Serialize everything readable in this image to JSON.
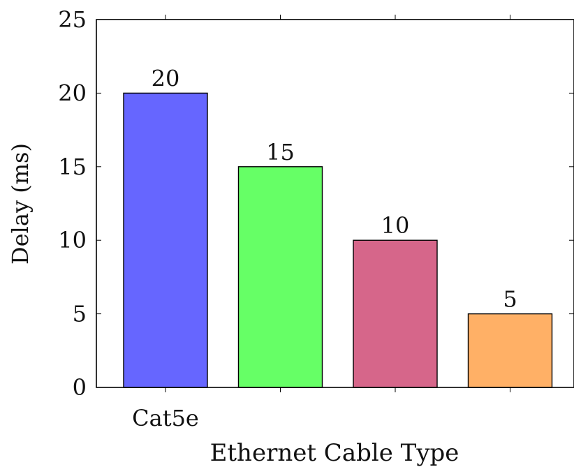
{
  "chart_data": {
    "type": "bar",
    "categories": [
      "Cat5e",
      "",
      "",
      ""
    ],
    "values": [
      20,
      15,
      10,
      5
    ],
    "colors": [
      "#6666ff",
      "#66ff66",
      "#d6668a",
      "#ffb066"
    ],
    "xlabel": "Ethernet Cable Type",
    "ylabel": "Delay (ms)",
    "ylim": [
      0,
      25
    ],
    "yticks": [
      0,
      5,
      10,
      15,
      20,
      25
    ],
    "data_labels": [
      "20",
      "15",
      "10",
      "5"
    ],
    "grid": false,
    "legend": "none"
  }
}
